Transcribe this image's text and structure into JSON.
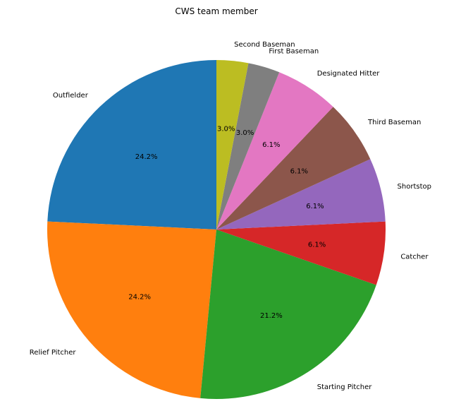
{
  "chart_data": {
    "type": "pie",
    "title": "CWS team member",
    "start_angle_deg": 90,
    "direction": "counterclockwise",
    "categories": [
      "Outfielder",
      "Relief Pitcher",
      "Starting Pitcher",
      "Catcher",
      "Shortstop",
      "Third Baseman",
      "Designated Hitter",
      "First Baseman",
      "Second Baseman"
    ],
    "values": [
      8,
      8,
      7,
      2,
      2,
      2,
      2,
      1,
      1
    ],
    "percent_labels": [
      "24.2%",
      "24.2%",
      "21.2%",
      "6.1%",
      "6.1%",
      "6.1%",
      "6.1%",
      "3.0%",
      "3.0%"
    ],
    "colors": [
      "#1f77b4",
      "#ff7f0e",
      "#2ca02c",
      "#d62728",
      "#9467bd",
      "#8c564b",
      "#e377c2",
      "#7f7f7f",
      "#bcbd22"
    ]
  }
}
